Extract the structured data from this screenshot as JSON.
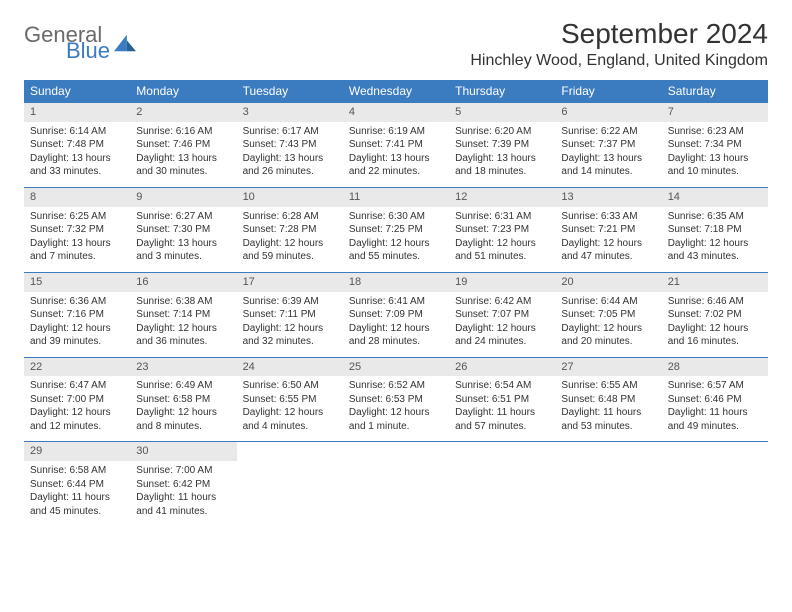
{
  "brand": {
    "general": "General",
    "blue": "Blue"
  },
  "title": "September 2024",
  "location": "Hinchley Wood, England, United Kingdom",
  "colors": {
    "header_bg": "#3b7bbf",
    "header_text": "#ffffff",
    "daynum_bg": "#e9e9e9",
    "row_border": "#3b7bbf",
    "body_text": "#333333",
    "logo_gray": "#6a6a6a",
    "logo_blue": "#3b7bbf",
    "background": "#ffffff"
  },
  "typography": {
    "title_fontsize": 28,
    "location_fontsize": 16,
    "weekday_fontsize": 12,
    "daynum_fontsize": 11,
    "detail_fontsize": 10
  },
  "weekdays": [
    "Sunday",
    "Monday",
    "Tuesday",
    "Wednesday",
    "Thursday",
    "Friday",
    "Saturday"
  ],
  "weeks": [
    [
      {
        "n": "1",
        "sr": "Sunrise: 6:14 AM",
        "ss": "Sunset: 7:48 PM",
        "d1": "Daylight: 13 hours",
        "d2": "and 33 minutes."
      },
      {
        "n": "2",
        "sr": "Sunrise: 6:16 AM",
        "ss": "Sunset: 7:46 PM",
        "d1": "Daylight: 13 hours",
        "d2": "and 30 minutes."
      },
      {
        "n": "3",
        "sr": "Sunrise: 6:17 AM",
        "ss": "Sunset: 7:43 PM",
        "d1": "Daylight: 13 hours",
        "d2": "and 26 minutes."
      },
      {
        "n": "4",
        "sr": "Sunrise: 6:19 AM",
        "ss": "Sunset: 7:41 PM",
        "d1": "Daylight: 13 hours",
        "d2": "and 22 minutes."
      },
      {
        "n": "5",
        "sr": "Sunrise: 6:20 AM",
        "ss": "Sunset: 7:39 PM",
        "d1": "Daylight: 13 hours",
        "d2": "and 18 minutes."
      },
      {
        "n": "6",
        "sr": "Sunrise: 6:22 AM",
        "ss": "Sunset: 7:37 PM",
        "d1": "Daylight: 13 hours",
        "d2": "and 14 minutes."
      },
      {
        "n": "7",
        "sr": "Sunrise: 6:23 AM",
        "ss": "Sunset: 7:34 PM",
        "d1": "Daylight: 13 hours",
        "d2": "and 10 minutes."
      }
    ],
    [
      {
        "n": "8",
        "sr": "Sunrise: 6:25 AM",
        "ss": "Sunset: 7:32 PM",
        "d1": "Daylight: 13 hours",
        "d2": "and 7 minutes."
      },
      {
        "n": "9",
        "sr": "Sunrise: 6:27 AM",
        "ss": "Sunset: 7:30 PM",
        "d1": "Daylight: 13 hours",
        "d2": "and 3 minutes."
      },
      {
        "n": "10",
        "sr": "Sunrise: 6:28 AM",
        "ss": "Sunset: 7:28 PM",
        "d1": "Daylight: 12 hours",
        "d2": "and 59 minutes."
      },
      {
        "n": "11",
        "sr": "Sunrise: 6:30 AM",
        "ss": "Sunset: 7:25 PM",
        "d1": "Daylight: 12 hours",
        "d2": "and 55 minutes."
      },
      {
        "n": "12",
        "sr": "Sunrise: 6:31 AM",
        "ss": "Sunset: 7:23 PM",
        "d1": "Daylight: 12 hours",
        "d2": "and 51 minutes."
      },
      {
        "n": "13",
        "sr": "Sunrise: 6:33 AM",
        "ss": "Sunset: 7:21 PM",
        "d1": "Daylight: 12 hours",
        "d2": "and 47 minutes."
      },
      {
        "n": "14",
        "sr": "Sunrise: 6:35 AM",
        "ss": "Sunset: 7:18 PM",
        "d1": "Daylight: 12 hours",
        "d2": "and 43 minutes."
      }
    ],
    [
      {
        "n": "15",
        "sr": "Sunrise: 6:36 AM",
        "ss": "Sunset: 7:16 PM",
        "d1": "Daylight: 12 hours",
        "d2": "and 39 minutes."
      },
      {
        "n": "16",
        "sr": "Sunrise: 6:38 AM",
        "ss": "Sunset: 7:14 PM",
        "d1": "Daylight: 12 hours",
        "d2": "and 36 minutes."
      },
      {
        "n": "17",
        "sr": "Sunrise: 6:39 AM",
        "ss": "Sunset: 7:11 PM",
        "d1": "Daylight: 12 hours",
        "d2": "and 32 minutes."
      },
      {
        "n": "18",
        "sr": "Sunrise: 6:41 AM",
        "ss": "Sunset: 7:09 PM",
        "d1": "Daylight: 12 hours",
        "d2": "and 28 minutes."
      },
      {
        "n": "19",
        "sr": "Sunrise: 6:42 AM",
        "ss": "Sunset: 7:07 PM",
        "d1": "Daylight: 12 hours",
        "d2": "and 24 minutes."
      },
      {
        "n": "20",
        "sr": "Sunrise: 6:44 AM",
        "ss": "Sunset: 7:05 PM",
        "d1": "Daylight: 12 hours",
        "d2": "and 20 minutes."
      },
      {
        "n": "21",
        "sr": "Sunrise: 6:46 AM",
        "ss": "Sunset: 7:02 PM",
        "d1": "Daylight: 12 hours",
        "d2": "and 16 minutes."
      }
    ],
    [
      {
        "n": "22",
        "sr": "Sunrise: 6:47 AM",
        "ss": "Sunset: 7:00 PM",
        "d1": "Daylight: 12 hours",
        "d2": "and 12 minutes."
      },
      {
        "n": "23",
        "sr": "Sunrise: 6:49 AM",
        "ss": "Sunset: 6:58 PM",
        "d1": "Daylight: 12 hours",
        "d2": "and 8 minutes."
      },
      {
        "n": "24",
        "sr": "Sunrise: 6:50 AM",
        "ss": "Sunset: 6:55 PM",
        "d1": "Daylight: 12 hours",
        "d2": "and 4 minutes."
      },
      {
        "n": "25",
        "sr": "Sunrise: 6:52 AM",
        "ss": "Sunset: 6:53 PM",
        "d1": "Daylight: 12 hours",
        "d2": "and 1 minute."
      },
      {
        "n": "26",
        "sr": "Sunrise: 6:54 AM",
        "ss": "Sunset: 6:51 PM",
        "d1": "Daylight: 11 hours",
        "d2": "and 57 minutes."
      },
      {
        "n": "27",
        "sr": "Sunrise: 6:55 AM",
        "ss": "Sunset: 6:48 PM",
        "d1": "Daylight: 11 hours",
        "d2": "and 53 minutes."
      },
      {
        "n": "28",
        "sr": "Sunrise: 6:57 AM",
        "ss": "Sunset: 6:46 PM",
        "d1": "Daylight: 11 hours",
        "d2": "and 49 minutes."
      }
    ],
    [
      {
        "n": "29",
        "sr": "Sunrise: 6:58 AM",
        "ss": "Sunset: 6:44 PM",
        "d1": "Daylight: 11 hours",
        "d2": "and 45 minutes."
      },
      {
        "n": "30",
        "sr": "Sunrise: 7:00 AM",
        "ss": "Sunset: 6:42 PM",
        "d1": "Daylight: 11 hours",
        "d2": "and 41 minutes."
      },
      null,
      null,
      null,
      null,
      null
    ]
  ]
}
